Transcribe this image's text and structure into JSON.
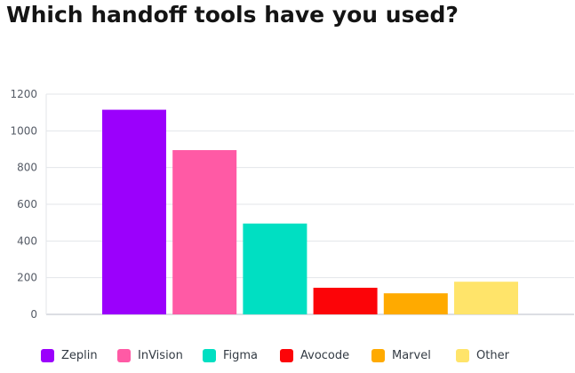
{
  "chart_data": {
    "type": "bar",
    "title": "Which handoff tools have you used?",
    "categories": [
      "Zeplin",
      "InVision",
      "Figma",
      "Avocode",
      "Marvel",
      "Other"
    ],
    "values": [
      1115,
      895,
      495,
      145,
      115,
      178
    ],
    "colors": [
      "#9b00fc",
      "#ff5aa5",
      "#00dfc2",
      "#fc0408",
      "#ffaa00",
      "#ffe46a"
    ],
    "ylim": [
      0,
      1200
    ],
    "yticks": [
      0,
      200,
      400,
      600,
      800,
      1000,
      1200
    ],
    "grid": true,
    "legend_position": "bottom",
    "xlabel": "",
    "ylabel": ""
  }
}
